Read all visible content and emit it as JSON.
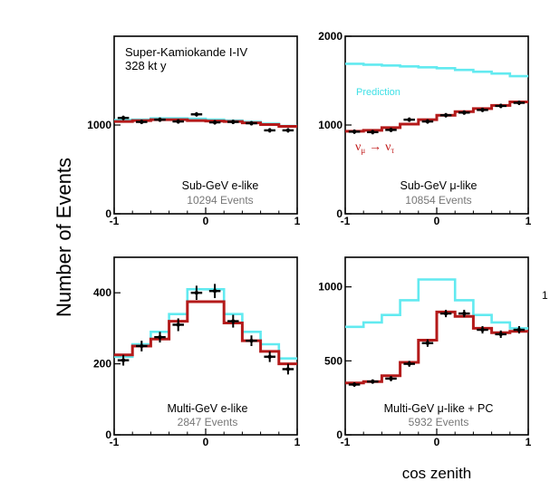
{
  "figure": {
    "ylabel": "Number of Events",
    "xlabel": "cos zenith",
    "experiment": "Super-Kamiokande I-IV",
    "exposure": "328 kt y",
    "prediction_label": "Prediction",
    "oscillation_label": {
      "nu": "ν",
      "mu": "μ",
      "arrow": "→",
      "tau": "τ"
    },
    "stray_mark": "1"
  },
  "colors": {
    "prediction": "#62eaf0",
    "fit": "#b41a1a",
    "data": "#000000",
    "prediction_text": "#3ee0e6",
    "count_text": "#777777"
  },
  "chart_data": [
    {
      "type": "line",
      "title": "Sub-GeV e-like",
      "events": "10294 Events",
      "xlim": [
        -1,
        1
      ],
      "ylim": [
        0,
        2000
      ],
      "yticks": [
        0,
        1000
      ],
      "xticks": [
        -1,
        0,
        1
      ],
      "bin_edges": [
        -1,
        -0.8,
        -0.6,
        -0.4,
        -0.2,
        0,
        0.2,
        0.4,
        0.6,
        0.8,
        1
      ],
      "series": [
        {
          "name": "Prediction",
          "values": [
            1055,
            1060,
            1075,
            1075,
            1070,
            1060,
            1050,
            1035,
            1015,
            990
          ]
        },
        {
          "values": [
            1040,
            1050,
            1060,
            1060,
            1050,
            1045,
            1040,
            1025,
            1005,
            985
          ]
        }
      ],
      "data_points": {
        "x": [
          -0.9,
          -0.7,
          -0.5,
          -0.3,
          -0.1,
          0.1,
          0.3,
          0.5,
          0.7,
          0.9
        ],
        "y": [
          1080,
          1035,
          1060,
          1040,
          1120,
          1030,
          1035,
          1020,
          940,
          940
        ],
        "err": [
          25,
          25,
          25,
          25,
          25,
          25,
          25,
          25,
          25,
          25
        ]
      }
    },
    {
      "type": "line",
      "title": "Sub-GeV μ-like",
      "events": "10854 Events",
      "xlim": [
        -1,
        1
      ],
      "ylim": [
        0,
        2000
      ],
      "yticks": [
        0,
        1000,
        2000
      ],
      "xticks": [
        -1,
        0,
        1
      ],
      "bin_edges": [
        -1,
        -0.8,
        -0.6,
        -0.4,
        -0.2,
        0,
        0.2,
        0.4,
        0.6,
        0.8,
        1
      ],
      "series": [
        {
          "name": "Prediction",
          "values": [
            1690,
            1680,
            1670,
            1660,
            1650,
            1640,
            1620,
            1600,
            1580,
            1550
          ]
        },
        {
          "values": [
            930,
            940,
            970,
            1010,
            1060,
            1110,
            1150,
            1185,
            1220,
            1260
          ]
        }
      ],
      "data_points": {
        "x": [
          -0.9,
          -0.7,
          -0.5,
          -0.3,
          -0.1,
          0.1,
          0.3,
          0.5,
          0.7,
          0.9
        ],
        "y": [
          925,
          920,
          945,
          1060,
          1040,
          1110,
          1140,
          1170,
          1215,
          1250
        ],
        "err": [
          25,
          25,
          25,
          25,
          25,
          25,
          25,
          25,
          25,
          25
        ]
      }
    },
    {
      "type": "line",
      "title": "Multi-GeV e-like",
      "events": "2847 Events",
      "xlim": [
        -1,
        1
      ],
      "ylim": [
        0,
        500
      ],
      "yticks": [
        0,
        200,
        400
      ],
      "xticks": [
        -1,
        0,
        1
      ],
      "bin_edges": [
        -1,
        -0.8,
        -0.6,
        -0.4,
        -0.2,
        0,
        0.2,
        0.4,
        0.6,
        0.8,
        1
      ],
      "series": [
        {
          "name": "Prediction",
          "values": [
            220,
            255,
            290,
            340,
            410,
            410,
            340,
            290,
            255,
            215
          ]
        },
        {
          "values": [
            225,
            250,
            270,
            320,
            375,
            375,
            315,
            265,
            235,
            200
          ]
        }
      ],
      "data_points": {
        "x": [
          -0.9,
          -0.7,
          -0.5,
          -0.3,
          -0.1,
          0.1,
          0.3,
          0.5,
          0.7,
          0.9
        ],
        "y": [
          210,
          250,
          275,
          310,
          400,
          405,
          320,
          265,
          220,
          185
        ],
        "err": [
          15,
          15,
          15,
          18,
          20,
          20,
          18,
          15,
          15,
          15
        ]
      }
    },
    {
      "type": "line",
      "title": "Multi-GeV μ-like + PC",
      "events": "5932 Events",
      "xlim": [
        -1,
        1
      ],
      "ylim": [
        0,
        1200
      ],
      "yticks": [
        0,
        500,
        1000
      ],
      "xticks": [
        -1,
        0,
        1
      ],
      "bin_edges": [
        -1,
        -0.8,
        -0.6,
        -0.4,
        -0.2,
        0,
        0.2,
        0.4,
        0.6,
        0.8,
        1
      ],
      "series": [
        {
          "name": "Prediction",
          "values": [
            730,
            760,
            810,
            910,
            1050,
            1050,
            910,
            810,
            760,
            720
          ]
        },
        {
          "values": [
            350,
            360,
            400,
            490,
            640,
            830,
            800,
            720,
            690,
            700
          ]
        }
      ],
      "data_points": {
        "x": [
          -0.9,
          -0.7,
          -0.5,
          -0.3,
          -0.1,
          0.1,
          0.3,
          0.5,
          0.7,
          0.9
        ],
        "y": [
          340,
          360,
          380,
          480,
          620,
          820,
          820,
          710,
          680,
          710
        ],
        "err": [
          15,
          15,
          18,
          20,
          25,
          25,
          25,
          25,
          25,
          25
        ]
      }
    }
  ],
  "panels": [
    {
      "count": "10294 Events"
    },
    {
      "count": "10854 Events"
    },
    {
      "count": "2847 Events"
    },
    {
      "count": "5932 Events"
    }
  ]
}
